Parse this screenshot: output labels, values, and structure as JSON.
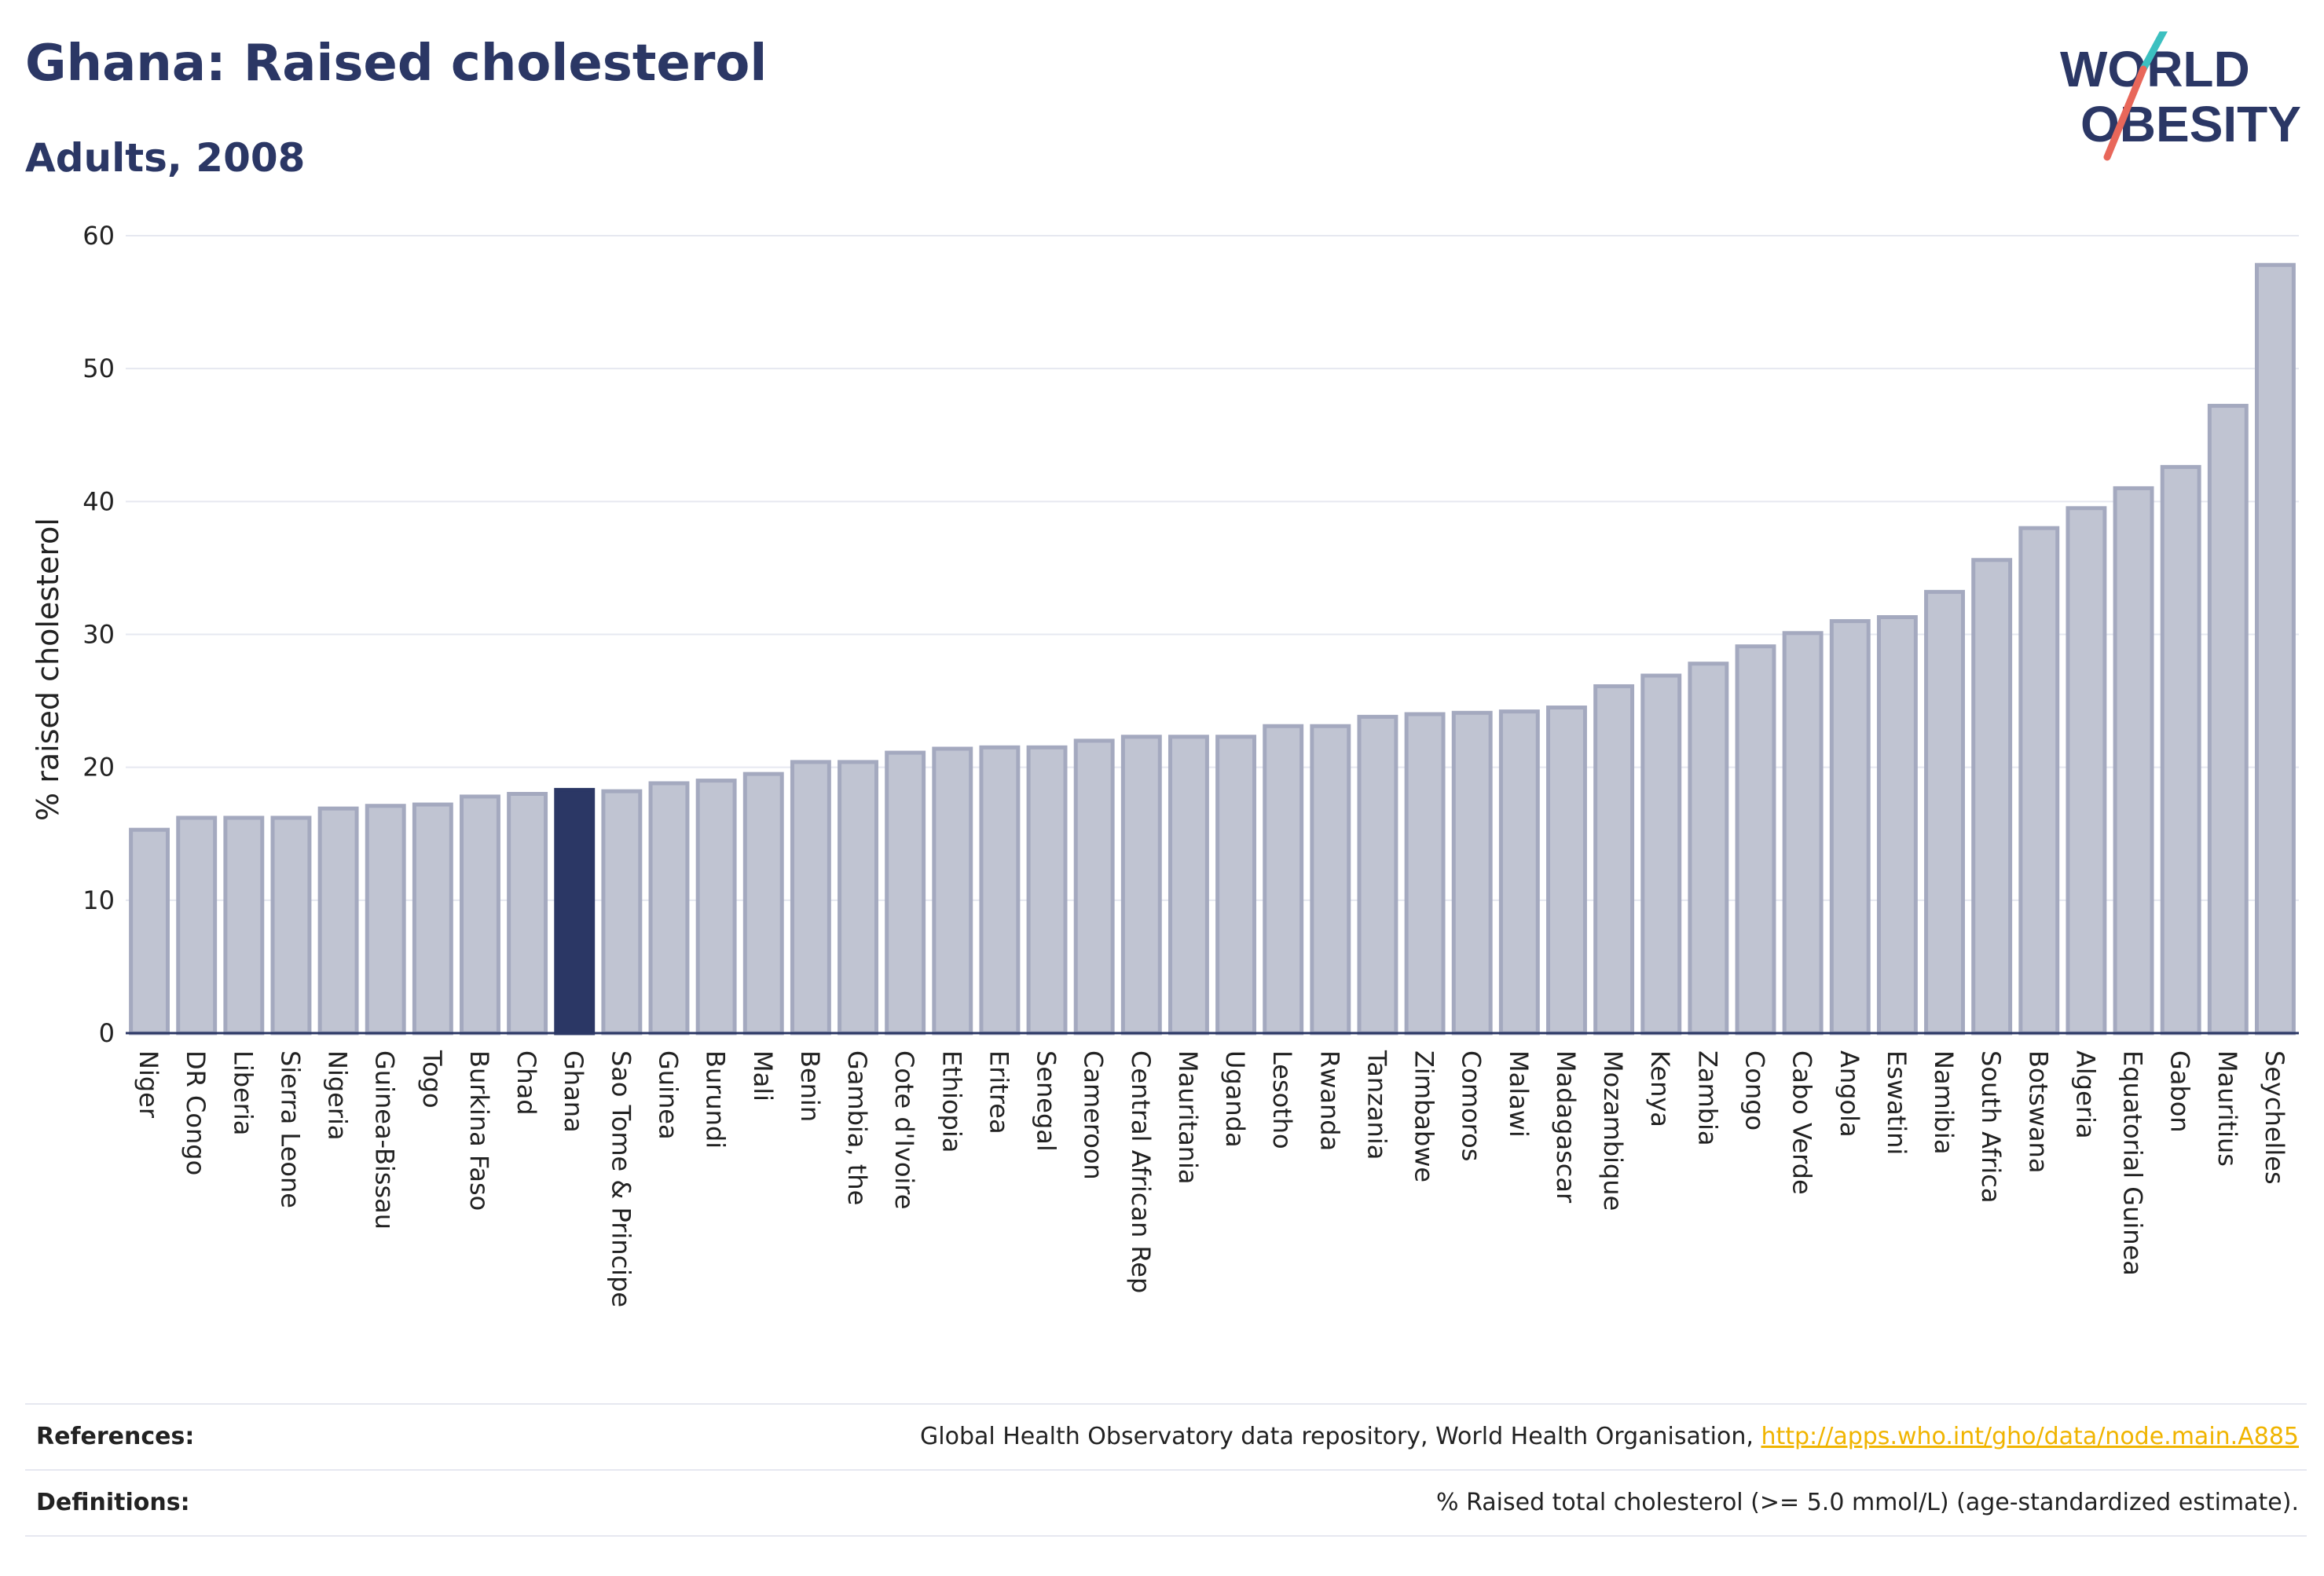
{
  "header": {
    "title": "Ghana: Raised cholesterol",
    "subtitle": "Adults, 2008"
  },
  "logo": {
    "line1": "WORLD",
    "line2": "OBESITY",
    "colors": {
      "text": "#2b3765",
      "slash_top": "#3cc0c0",
      "slash_bottom": "#e8675a"
    }
  },
  "colors": {
    "bar": "#c0c4d2",
    "bar_border": "#a4a9bf",
    "highlight": "#2b3765",
    "grid": "#e6e8f0"
  },
  "chart_data": {
    "type": "bar",
    "ylabel": "% raised cholesterol",
    "xlabel": "",
    "ylim": [
      0,
      60
    ],
    "yticks": [
      0,
      10,
      20,
      30,
      40,
      50,
      60
    ],
    "grid": true,
    "highlight": "Ghana",
    "categories": [
      "Niger",
      "DR Congo",
      "Liberia",
      "Sierra Leone",
      "Nigeria",
      "Guinea-Bissau",
      "Togo",
      "Burkina Faso",
      "Chad",
      "Ghana",
      "Sao Tome & Principe",
      "Guinea",
      "Burundi",
      "Mali",
      "Benin",
      "Gambia, the",
      "Cote d'Ivoire",
      "Ethiopia",
      "Eritrea",
      "Senegal",
      "Cameroon",
      "Central African Rep",
      "Mauritania",
      "Uganda",
      "Lesotho",
      "Rwanda",
      "Tanzania",
      "Zimbabwe",
      "Comoros",
      "Malawi",
      "Madagascar",
      "Mozambique",
      "Kenya",
      "Zambia",
      "Congo",
      "Cabo Verde",
      "Angola",
      "Eswatini",
      "Namibia",
      "South Africa",
      "Botswana",
      "Algeria",
      "Equatorial Guinea",
      "Gabon",
      "Mauritius",
      "Seychelles"
    ],
    "values": [
      15.3,
      16.2,
      16.2,
      16.2,
      16.9,
      17.1,
      17.2,
      17.8,
      18.0,
      18.3,
      18.2,
      18.8,
      19.0,
      19.5,
      20.4,
      20.4,
      21.1,
      21.4,
      21.5,
      21.5,
      22.0,
      22.3,
      22.3,
      22.3,
      23.1,
      23.1,
      23.8,
      24.0,
      24.1,
      24.2,
      24.5,
      26.1,
      26.9,
      27.8,
      29.1,
      30.1,
      31.0,
      31.3,
      33.2,
      35.6,
      38.0,
      39.5,
      41.0,
      42.6,
      47.2,
      57.8
    ]
  },
  "footer": {
    "references_label": "References:",
    "references_text": "Global Health Observatory data repository, World Health Organisation, ",
    "references_link": "http://apps.who.int/gho/data/node.main.A885",
    "definitions_label": "Definitions:",
    "definitions_text": "% Raised total cholesterol (>= 5.0 mmol/L) (age-standardized estimate)."
  }
}
